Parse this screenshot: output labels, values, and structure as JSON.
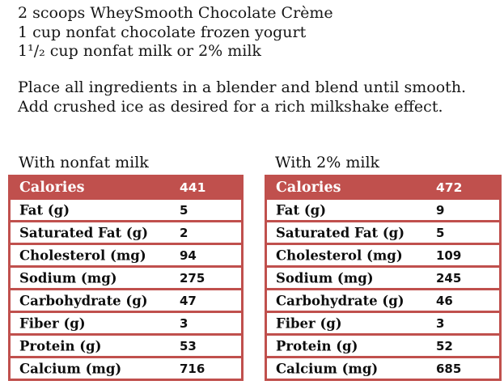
{
  "colors": {
    "accent_red": "#c0504d",
    "text": "#161616",
    "header_text": "#ffffff"
  },
  "ingredients": {
    "lines": [
      "2 scoops WheySmooth Chocolate Crème",
      "1 cup nonfat chocolate frozen yogurt",
      "1¹/₂ cup nonfat milk or 2% milk"
    ]
  },
  "instructions": {
    "lines": [
      "Place all ingredients in a blender and blend until smooth.",
      "Add crushed ice as desired for a rich milkshake effect."
    ]
  },
  "tables": [
    {
      "title": "With nonfat milk",
      "header": {
        "label": "Calories",
        "value": "441"
      },
      "rows": [
        {
          "label": "Fat (g)",
          "value": "5"
        },
        {
          "label": "Saturated Fat (g)",
          "value": "2"
        },
        {
          "label": "Cholesterol (mg)",
          "value": "94"
        },
        {
          "label": "Sodium (mg)",
          "value": "275"
        },
        {
          "label": "Carbohydrate (g)",
          "value": "47"
        },
        {
          "label": "Fiber (g)",
          "value": "3"
        },
        {
          "label": "Protein (g)",
          "value": "53"
        },
        {
          "label": "Calcium (mg)",
          "value": "716"
        }
      ]
    },
    {
      "title": "With 2% milk",
      "header": {
        "label": "Calories",
        "value": "472"
      },
      "rows": [
        {
          "label": "Fat (g)",
          "value": "9"
        },
        {
          "label": "Saturated Fat (g)",
          "value": "5"
        },
        {
          "label": "Cholesterol (mg)",
          "value": "109"
        },
        {
          "label": "Sodium (mg)",
          "value": "245"
        },
        {
          "label": "Carbohydrate (g)",
          "value": "46"
        },
        {
          "label": "Fiber (g)",
          "value": "3"
        },
        {
          "label": "Protein (g)",
          "value": "52"
        },
        {
          "label": "Calcium (mg)",
          "value": "685"
        }
      ]
    }
  ]
}
